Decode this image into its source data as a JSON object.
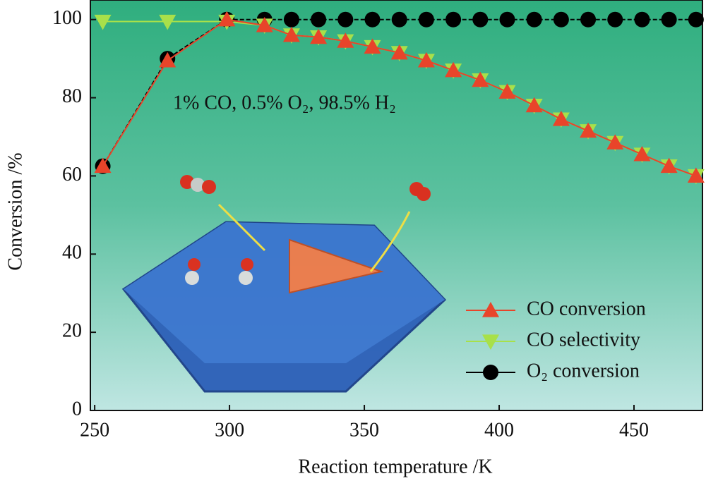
{
  "chart_data": {
    "type": "line",
    "annotation": "1% CO, 0.5% O₂, 98.5% H₂",
    "x_label": "Reaction temperature /K",
    "y_label": "Conversion /%",
    "x": [
      253,
      277,
      299,
      313,
      323,
      333,
      343,
      353,
      363,
      373,
      383,
      393,
      403,
      413,
      423,
      433,
      443,
      453,
      463,
      473
    ],
    "series": [
      {
        "name": "CO conversion",
        "color": "#e8442a",
        "marker": "triangle-up",
        "values": [
          62.5,
          89.5,
          100,
          98.5,
          96,
          95.5,
          94.5,
          93,
          91.5,
          89.5,
          87,
          84.5,
          81.5,
          78,
          74.5,
          71.5,
          68.5,
          65.5,
          62.5,
          60
        ]
      },
      {
        "name": "CO selectivity",
        "color": "#a8e04a",
        "marker": "triangle-down",
        "values": [
          99.5,
          99.5,
          99.5,
          98.5,
          96,
          95.5,
          94.5,
          93,
          91.5,
          89.5,
          87,
          84.5,
          81.5,
          78,
          74.5,
          71.5,
          68.5,
          65.5,
          62.5,
          60
        ]
      },
      {
        "name": "O₂ conversion",
        "color": "#000000",
        "marker": "circle",
        "values": [
          62.5,
          90,
          100,
          100,
          100,
          100,
          100,
          100,
          100,
          100,
          100,
          100,
          100,
          100,
          100,
          100,
          100,
          100,
          100,
          100
        ]
      }
    ],
    "xlim": [
      248.4,
      475.4
    ],
    "xticks": [
      250,
      300,
      350,
      400,
      450
    ],
    "ylim": [
      0,
      105
    ],
    "yticks": [
      0,
      20,
      40,
      60,
      80,
      100
    ],
    "legend": "lower right"
  }
}
